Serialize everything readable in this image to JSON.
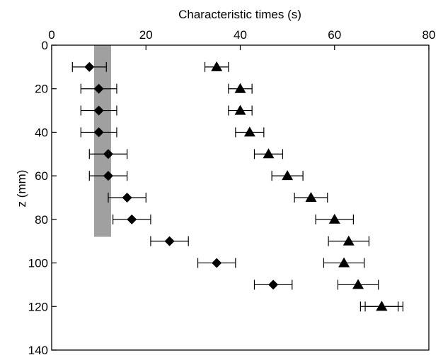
{
  "chart_data": {
    "type": "scatter",
    "title": "",
    "xlabel": "Characteristic times (s)",
    "ylabel": "z (mm)",
    "xlim": [
      0,
      80
    ],
    "ylim": [
      0,
      140
    ],
    "y_inverted": true,
    "x_axis_position": "top",
    "grid": false,
    "legend": "none",
    "x_ticks": [
      "0",
      "20",
      "40",
      "60",
      "80"
    ],
    "y_ticks": [
      "0",
      "20",
      "40",
      "60",
      "80",
      "100",
      "120",
      "140"
    ],
    "band": {
      "x": [
        9,
        12.6
      ],
      "z": [
        0,
        88
      ],
      "color": "#a0a0a0"
    },
    "series": [
      {
        "marker": "diamond",
        "color": "#000000",
        "points": [
          {
            "z": 10,
            "x": 8,
            "xerr": 3.6
          },
          {
            "z": 20,
            "x": 10,
            "xerr": 3.8
          },
          {
            "z": 30,
            "x": 10,
            "xerr": 3.8
          },
          {
            "z": 40,
            "x": 10,
            "xerr": 3.8
          },
          {
            "z": 50,
            "x": 12,
            "xerr": 4
          },
          {
            "z": 60,
            "x": 12,
            "xerr": 4
          },
          {
            "z": 70,
            "x": 16,
            "xerr": 4
          },
          {
            "z": 80,
            "x": 17,
            "xerr": 4
          },
          {
            "z": 90,
            "x": 25,
            "xerr": 4
          },
          {
            "z": 100,
            "x": 35,
            "xerr": 4
          },
          {
            "z": 110,
            "x": 47,
            "xerr": 4
          }
        ]
      },
      {
        "marker": "triangle",
        "color": "#000000",
        "points": [
          {
            "z": 10,
            "x": 35,
            "xerr": 2.5
          },
          {
            "z": 20,
            "x": 40,
            "xerr": 2.5
          },
          {
            "z": 30,
            "x": 40,
            "xerr": 2.5
          },
          {
            "z": 40,
            "x": 42,
            "xerr": 3
          },
          {
            "z": 50,
            "x": 46,
            "xerr": 3
          },
          {
            "z": 60,
            "x": 50,
            "xerr": 3.3
          },
          {
            "z": 70,
            "x": 55,
            "xerr": 3.5
          },
          {
            "z": 80,
            "x": 60,
            "xerr": 4
          },
          {
            "z": 90,
            "x": 63,
            "xerr": 4.3
          },
          {
            "z": 100,
            "x": 62,
            "xerr": 4.3
          },
          {
            "z": 110,
            "x": 65,
            "xerr": 4.3
          },
          {
            "z": 120,
            "x": 70,
            "xerr": 4.5
          },
          {
            "z": 120,
            "x": 70,
            "xerr": 3.5
          }
        ]
      }
    ]
  }
}
